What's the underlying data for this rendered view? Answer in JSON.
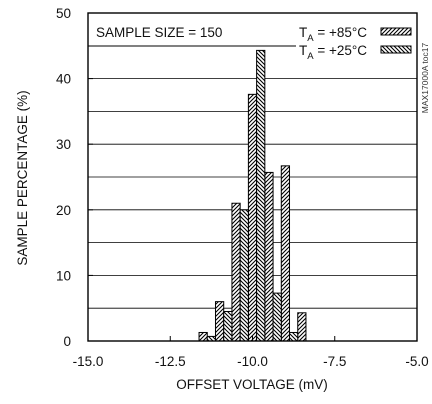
{
  "chart_data": {
    "type": "bar",
    "xlabel": "OFFSET VOLTAGE (mV)",
    "ylabel": "SAMPLE PERCENTAGE (%)",
    "xlim": [
      -15.0,
      -5.0
    ],
    "ylim": [
      0,
      50
    ],
    "x_ticks": [
      "-15.0",
      "-12.5",
      "-10.0",
      "-7.5",
      "-5.0"
    ],
    "x_tick_values": [
      -15.0,
      -12.5,
      -10.0,
      -7.5,
      -5.0
    ],
    "y_ticks": [
      "0",
      "10",
      "20",
      "30",
      "40",
      "50"
    ],
    "y_tick_values": [
      0,
      10,
      20,
      30,
      40,
      50
    ],
    "grid": "horizontal",
    "legend_position": "top-right",
    "annotation": "SAMPLE SIZE = 150",
    "watermark": "MAX17000A toc17",
    "bin_width_mv": 0.25,
    "series": [
      {
        "name_main": "T",
        "name_sub": "A",
        "name_rest": " = +85°C",
        "hatch": "forward",
        "x": [
          -11.5,
          -11.0,
          -10.5,
          -10.0,
          -9.5,
          -9.0,
          -8.5
        ],
        "values": [
          1.3,
          6.0,
          21.0,
          37.6,
          25.7,
          26.7,
          4.3
        ]
      },
      {
        "name_main": "T",
        "name_sub": "A",
        "name_rest": " = +25°C",
        "hatch": "backward",
        "x": [
          -11.25,
          -10.75,
          -10.25,
          -9.75,
          -9.25,
          -8.75
        ],
        "values": [
          0.7,
          4.5,
          20.0,
          44.3,
          7.3,
          1.3
        ]
      }
    ]
  }
}
